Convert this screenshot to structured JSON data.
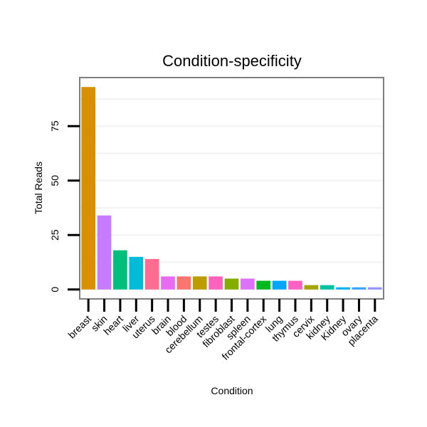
{
  "chart_data": {
    "type": "bar",
    "title": "Condition-specificity",
    "xlabel": "Condition",
    "ylabel": "Total Reads",
    "ylim": [
      -4,
      97
    ],
    "yticks": [
      0,
      25,
      50,
      75
    ],
    "grid": true,
    "legend": "none",
    "categories": [
      "breast",
      "skin",
      "heart",
      "liver",
      "uterus",
      "brain",
      "blood",
      "cerebellum",
      "testes",
      "fibroblast",
      "spleen",
      "frontal-cortex",
      "lung",
      "thymus",
      "cervix",
      "kidney",
      "Kidney",
      "ovary",
      "placenta"
    ],
    "values": [
      93,
      34,
      18,
      15,
      14,
      6,
      6,
      6,
      6,
      5,
      5,
      4,
      4,
      4,
      2,
      2,
      1,
      1,
      1
    ],
    "colors": [
      "#D89000",
      "#C77CFF",
      "#00BF7D",
      "#00BCD8",
      "#FF6C91",
      "#E76BF3",
      "#F8766D",
      "#BB9D00",
      "#FF62BC",
      "#85AD00",
      "#DE71F9",
      "#00B81F",
      "#00A5FF",
      "#FF61C3",
      "#A3A500",
      "#00C1A3",
      "#00B0F6",
      "#35A2FF",
      "#9590FF"
    ]
  }
}
